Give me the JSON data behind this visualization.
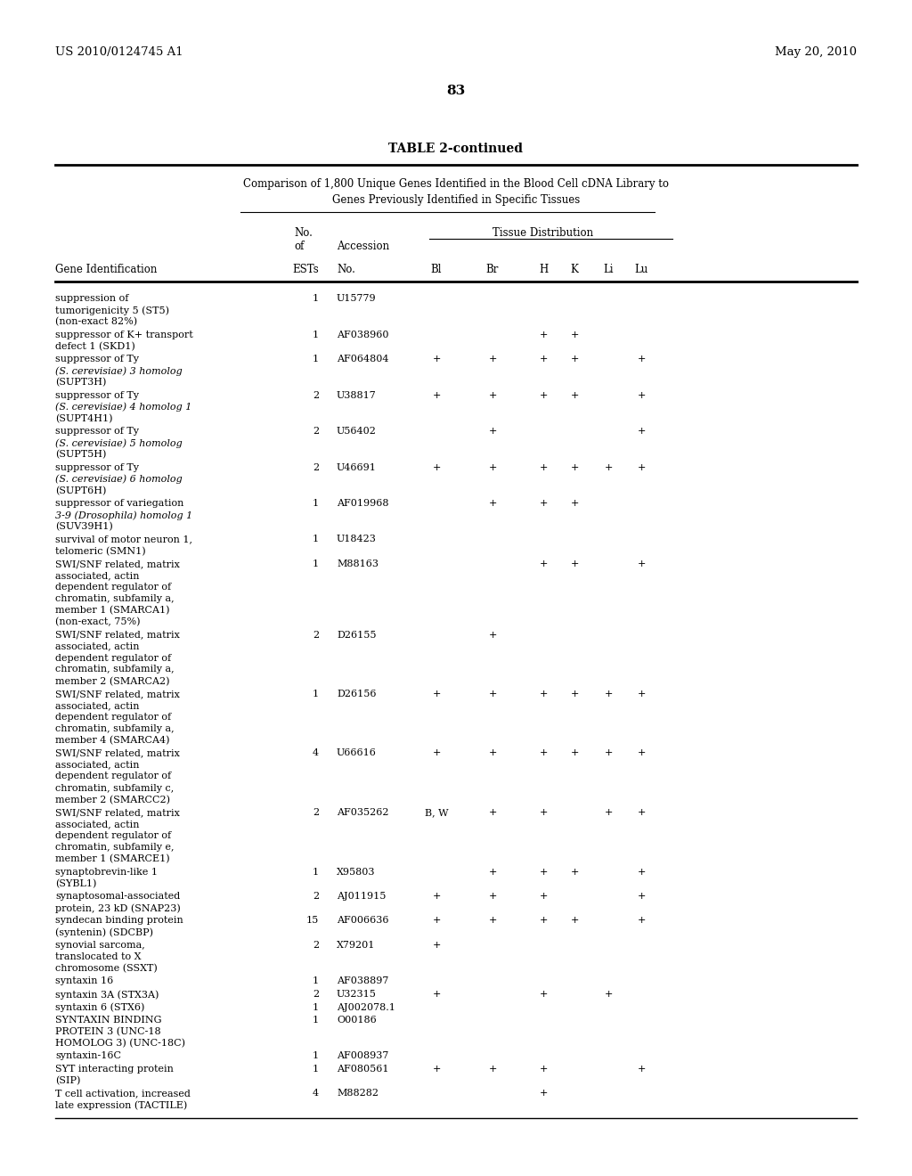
{
  "header_left": "US 2010/0124745 A1",
  "header_right": "May 20, 2010",
  "page_number": "83",
  "table_title": "TABLE 2-continued",
  "table_subtitle1": "Comparison of 1,800 Unique Genes Identified in the Blood Cell cDNA Library to",
  "table_subtitle2": "Genes Previously Identified in Specific Tissues",
  "gene_id_header": "Gene Identification",
  "tissue_dist_header": "Tissue Distribution",
  "rows": [
    {
      "gene": [
        "suppression of",
        "tumorigenicity 5 (ST5)",
        "(non-exact 82%)"
      ],
      "italic_lines": [],
      "no": "1",
      "acc": "U15779",
      "bl": "",
      "br": "",
      "h": "",
      "k": "",
      "li": "",
      "lu": ""
    },
    {
      "gene": [
        "suppressor of K+ transport",
        "defect 1 (SKD1)"
      ],
      "italic_lines": [],
      "no": "1",
      "acc": "AF038960",
      "bl": "",
      "br": "",
      "h": "+",
      "k": "+",
      "li": "",
      "lu": ""
    },
    {
      "gene": [
        "suppressor of Ty",
        "(S. cerevisiae) 3 homolog",
        "(SUPT3H)"
      ],
      "italic_lines": [
        1
      ],
      "no": "1",
      "acc": "AF064804",
      "bl": "+",
      "br": "+",
      "h": "+",
      "k": "+",
      "li": "",
      "lu": "+"
    },
    {
      "gene": [
        "suppressor of Ty",
        "(S. cerevisiae) 4 homolog 1",
        "(SUPT4H1)"
      ],
      "italic_lines": [
        1
      ],
      "no": "2",
      "acc": "U38817",
      "bl": "+",
      "br": "+",
      "h": "+",
      "k": "+",
      "li": "",
      "lu": "+"
    },
    {
      "gene": [
        "suppressor of Ty",
        "(S. cerevisiae) 5 homolog",
        "(SUPT5H)"
      ],
      "italic_lines": [
        1
      ],
      "no": "2",
      "acc": "U56402",
      "bl": "",
      "br": "+",
      "h": "",
      "k": "",
      "li": "",
      "lu": "+"
    },
    {
      "gene": [
        "suppressor of Ty",
        "(S. cerevisiae) 6 homolog",
        "(SUPT6H)"
      ],
      "italic_lines": [
        1
      ],
      "no": "2",
      "acc": "U46691",
      "bl": "+",
      "br": "+",
      "h": "+",
      "k": "+",
      "li": "+",
      "lu": "+"
    },
    {
      "gene": [
        "suppressor of variegation",
        "3-9 (Drosophila) homolog 1",
        "(SUV39H1)"
      ],
      "italic_lines": [
        1
      ],
      "no": "1",
      "acc": "AF019968",
      "bl": "",
      "br": "+",
      "h": "+",
      "k": "+",
      "li": "",
      "lu": ""
    },
    {
      "gene": [
        "survival of motor neuron 1,",
        "telomeric (SMN1)"
      ],
      "italic_lines": [],
      "no": "1",
      "acc": "U18423",
      "bl": "",
      "br": "",
      "h": "",
      "k": "",
      "li": "",
      "lu": ""
    },
    {
      "gene": [
        "SWI/SNF related, matrix",
        "associated, actin",
        "dependent regulator of",
        "chromatin, subfamily a,",
        "member 1 (SMARCA1)",
        "(non-exact, 75%)"
      ],
      "italic_lines": [],
      "no": "1",
      "acc": "M88163",
      "bl": "",
      "br": "",
      "h": "+",
      "k": "+",
      "li": "",
      "lu": "+"
    },
    {
      "gene": [
        "SWI/SNF related, matrix",
        "associated, actin",
        "dependent regulator of",
        "chromatin, subfamily a,",
        "member 2 (SMARCA2)"
      ],
      "italic_lines": [],
      "no": "2",
      "acc": "D26155",
      "bl": "",
      "br": "+",
      "h": "",
      "k": "",
      "li": "",
      "lu": ""
    },
    {
      "gene": [
        "SWI/SNF related, matrix",
        "associated, actin",
        "dependent regulator of",
        "chromatin, subfamily a,",
        "member 4 (SMARCA4)"
      ],
      "italic_lines": [],
      "no": "1",
      "acc": "D26156",
      "bl": "+",
      "br": "+",
      "h": "+",
      "k": "+",
      "li": "+",
      "lu": "+"
    },
    {
      "gene": [
        "SWI/SNF related, matrix",
        "associated, actin",
        "dependent regulator of",
        "chromatin, subfamily c,",
        "member 2 (SMARCC2)"
      ],
      "italic_lines": [],
      "no": "4",
      "acc": "U66616",
      "bl": "+",
      "br": "+",
      "h": "+",
      "k": "+",
      "li": "+",
      "lu": "+"
    },
    {
      "gene": [
        "SWI/SNF related, matrix",
        "associated, actin",
        "dependent regulator of",
        "chromatin, subfamily e,",
        "member 1 (SMARCE1)"
      ],
      "italic_lines": [],
      "no": "2",
      "acc": "AF035262",
      "bl": "B, W",
      "br": "+",
      "h": "+",
      "k": "",
      "li": "+",
      "lu": "+"
    },
    {
      "gene": [
        "synaptobrevin-like 1",
        "(SYBL1)"
      ],
      "italic_lines": [],
      "no": "1",
      "acc": "X95803",
      "bl": "",
      "br": "+",
      "h": "+",
      "k": "+",
      "li": "",
      "lu": "+"
    },
    {
      "gene": [
        "synaptosomal-associated",
        "protein, 23 kD (SNAP23)"
      ],
      "italic_lines": [],
      "no": "2",
      "acc": "AJ011915",
      "bl": "+",
      "br": "+",
      "h": "+",
      "k": "",
      "li": "",
      "lu": "+"
    },
    {
      "gene": [
        "syndecan binding protein",
        "(syntenin) (SDCBP)"
      ],
      "italic_lines": [],
      "no": "15",
      "acc": "AF006636",
      "bl": "+",
      "br": "+",
      "h": "+",
      "k": "+",
      "li": "",
      "lu": "+"
    },
    {
      "gene": [
        "synovial sarcoma,",
        "translocated to X",
        "chromosome (SSXT)"
      ],
      "italic_lines": [],
      "no": "2",
      "acc": "X79201",
      "bl": "+",
      "br": "",
      "h": "",
      "k": "",
      "li": "",
      "lu": ""
    },
    {
      "gene": [
        "syntaxin 16"
      ],
      "italic_lines": [],
      "no": "1",
      "acc": "AF038897",
      "bl": "",
      "br": "",
      "h": "",
      "k": "",
      "li": "",
      "lu": ""
    },
    {
      "gene": [
        "syntaxin 3A (STX3A)"
      ],
      "italic_lines": [],
      "no": "2",
      "acc": "U32315",
      "bl": "+",
      "br": "",
      "h": "+",
      "k": "",
      "li": "+",
      "lu": ""
    },
    {
      "gene": [
        "syntaxin 6 (STX6)"
      ],
      "italic_lines": [],
      "no": "1",
      "acc": "AJ002078.1",
      "bl": "",
      "br": "",
      "h": "",
      "k": "",
      "li": "",
      "lu": ""
    },
    {
      "gene": [
        "SYNTAXIN BINDING",
        "PROTEIN 3 (UNC-18",
        "HOMOLOG 3) (UNC-18C)"
      ],
      "italic_lines": [],
      "no": "1",
      "acc": "O00186",
      "bl": "",
      "br": "",
      "h": "",
      "k": "",
      "li": "",
      "lu": ""
    },
    {
      "gene": [
        "syntaxin-16C"
      ],
      "italic_lines": [],
      "no": "1",
      "acc": "AF008937",
      "bl": "",
      "br": "",
      "h": "",
      "k": "",
      "li": "",
      "lu": ""
    },
    {
      "gene": [
        "SYT interacting protein",
        "(SIP)"
      ],
      "italic_lines": [],
      "no": "1",
      "acc": "AF080561",
      "bl": "+",
      "br": "+",
      "h": "+",
      "k": "",
      "li": "",
      "lu": "+"
    },
    {
      "gene": [
        "T cell activation, increased",
        "late expression (TACTILE)"
      ],
      "italic_lines": [],
      "no": "4",
      "acc": "M88282",
      "bl": "",
      "br": "",
      "h": "+",
      "k": "",
      "li": "",
      "lu": ""
    }
  ]
}
